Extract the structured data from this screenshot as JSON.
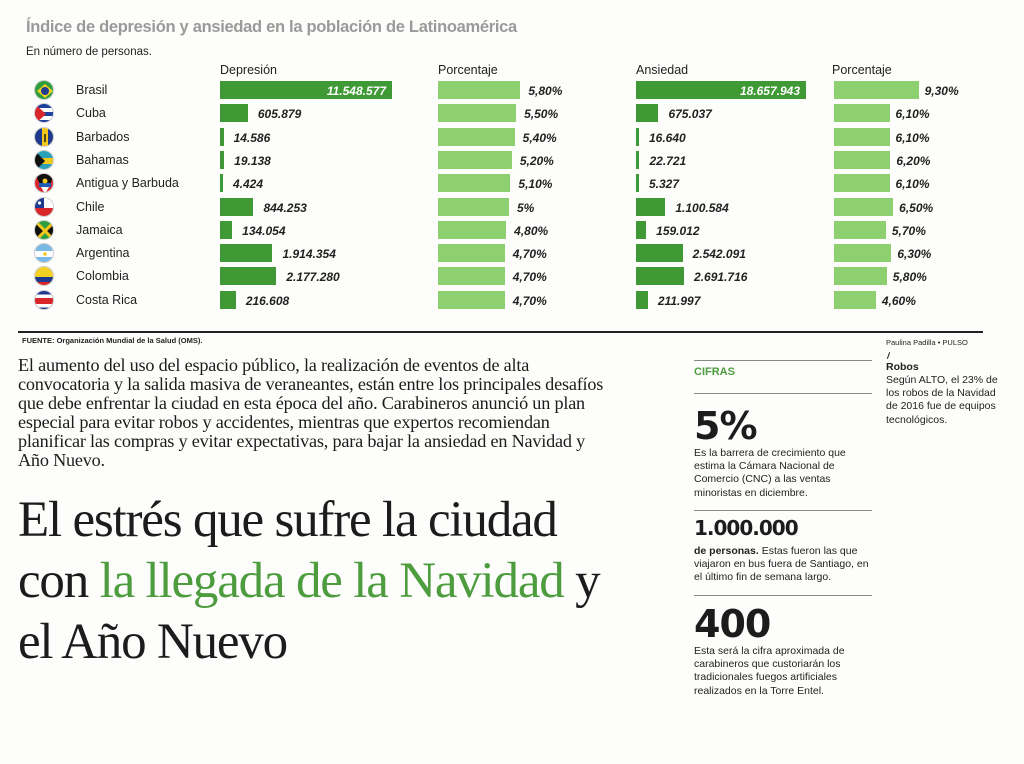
{
  "chart_data": {
    "type": "bar",
    "title": "Índice de depresión y ansiedad en la población de Latinoamérica",
    "subtitle": "En número de personas.",
    "column_headers": {
      "depresion": "Depresión",
      "porcentaje_dep": "Porcentaje",
      "ansiedad": "Ansiedad",
      "porcentaje_ans": "Porcentaje"
    },
    "colors": {
      "dark_bar": "#3f9a35",
      "light_bar": "#8ed06f",
      "accent": "#4d9c3e"
    },
    "rows": [
      {
        "country": "Brasil",
        "flag": "brazil-flag",
        "depresion": 11548577,
        "depresion_label": "11.548.577",
        "pct_dep": 5.8,
        "pct_dep_label": "5,80%",
        "ansiedad": 18657943,
        "ansiedad_label": "18.657.943",
        "pct_ans": 9.3,
        "pct_ans_label": "9,30%"
      },
      {
        "country": "Cuba",
        "flag": "cuba-flag",
        "depresion": 605879,
        "depresion_label": "605.879",
        "pct_dep": 5.5,
        "pct_dep_label": "5,50%",
        "ansiedad": 675037,
        "ansiedad_label": "675.037",
        "pct_ans": 6.1,
        "pct_ans_label": "6,10%"
      },
      {
        "country": "Barbados",
        "flag": "barbados-flag",
        "depresion": 14586,
        "depresion_label": "14.586",
        "pct_dep": 5.4,
        "pct_dep_label": "5,40%",
        "ansiedad": 16640,
        "ansiedad_label": "16.640",
        "pct_ans": 6.1,
        "pct_ans_label": "6,10%"
      },
      {
        "country": "Bahamas",
        "flag": "bahamas-flag",
        "depresion": 19138,
        "depresion_label": "19.138",
        "pct_dep": 5.2,
        "pct_dep_label": "5,20%",
        "ansiedad": 22721,
        "ansiedad_label": "22.721",
        "pct_ans": 6.2,
        "pct_ans_label": "6,20%"
      },
      {
        "country": "Antigua y Barbuda",
        "flag": "antigua-flag",
        "depresion": 4424,
        "depresion_label": "4.424",
        "pct_dep": 5.1,
        "pct_dep_label": "5,10%",
        "ansiedad": 5327,
        "ansiedad_label": "5.327",
        "pct_ans": 6.1,
        "pct_ans_label": "6,10%"
      },
      {
        "country": "Chile",
        "flag": "chile-flag",
        "depresion": 844253,
        "depresion_label": "844.253",
        "pct_dep": 5.0,
        "pct_dep_label": "5%",
        "ansiedad": 1100584,
        "ansiedad_label": "1.100.584",
        "pct_ans": 6.5,
        "pct_ans_label": "6,50%"
      },
      {
        "country": "Jamaica",
        "flag": "jamaica-flag",
        "depresion": 134054,
        "depresion_label": "134.054",
        "pct_dep": 4.8,
        "pct_dep_label": "4,80%",
        "ansiedad": 159012,
        "ansiedad_label": "159.012",
        "pct_ans": 5.7,
        "pct_ans_label": "5,70%"
      },
      {
        "country": "Argentina",
        "flag": "argentina-flag",
        "depresion": 1914354,
        "depresion_label": "1.914.354",
        "pct_dep": 4.7,
        "pct_dep_label": "4,70%",
        "ansiedad": 2542091,
        "ansiedad_label": "2.542.091",
        "pct_ans": 6.3,
        "pct_ans_label": "6,30%"
      },
      {
        "country": "Colombia",
        "flag": "colombia-flag",
        "depresion": 2177280,
        "depresion_label": "2.177.280",
        "pct_dep": 4.7,
        "pct_dep_label": "4,70%",
        "ansiedad": 2691716,
        "ansiedad_label": "2.691.716",
        "pct_ans": 5.8,
        "pct_ans_label": "5,80%"
      },
      {
        "country": "Costa Rica",
        "flag": "costa-rica-flag",
        "depresion": 216608,
        "depresion_label": "216.608",
        "pct_dep": 4.7,
        "pct_dep_label": "4,70%",
        "ansiedad": 211997,
        "ansiedad_label": "211.997",
        "pct_ans": 4.6,
        "pct_ans_label": "4,60%"
      }
    ],
    "source": "FUENTE:  Organización Mundial de la Salud (OMS).",
    "credit": "Paulina Padilla • PULSO"
  },
  "article": {
    "lede": "El aumento del uso del espacio público, la realización de eventos de alta convocatoria y la salida masiva de veraneantes, están entre los principales desafíos que debe enfrentar la ciudad en esta época del año. Carabineros anunció un plan especial para evitar robos y accidentes, mientras que expertos recomiendan planificar las compras y evitar expectativas, para bajar la ansiedad en Navidad y Año Nuevo.",
    "headline_part1": "El estrés que sufre la ciudad con ",
    "headline_green": "la llegada de la Navidad",
    "headline_part2": " y el Año Nuevo"
  },
  "sidebar": {
    "label": "CIFRAS",
    "items": [
      {
        "number": "5%",
        "lead": "",
        "text": "Es la barrera de crecimiento que estima la Cámara Nacional de Comercio (CNC) a las ventas minoristas en diciembre."
      },
      {
        "number": "1.000.000",
        "lead": "de personas.",
        "text": " Estas fueron las que viajaron en bus fuera de Santiago, en el último fin de semana largo."
      },
      {
        "number": "400",
        "lead": "",
        "text": "Esta será la cifra aproximada de carabineros que custoriarán los tradicionales fuegos artificiales realizados en la Torre Entel."
      }
    ],
    "robos_title": "Robos",
    "robos_text": "Según ALTO, el 23% de los robos de la Navidad de 2016 fue de equipos tecnológicos."
  }
}
